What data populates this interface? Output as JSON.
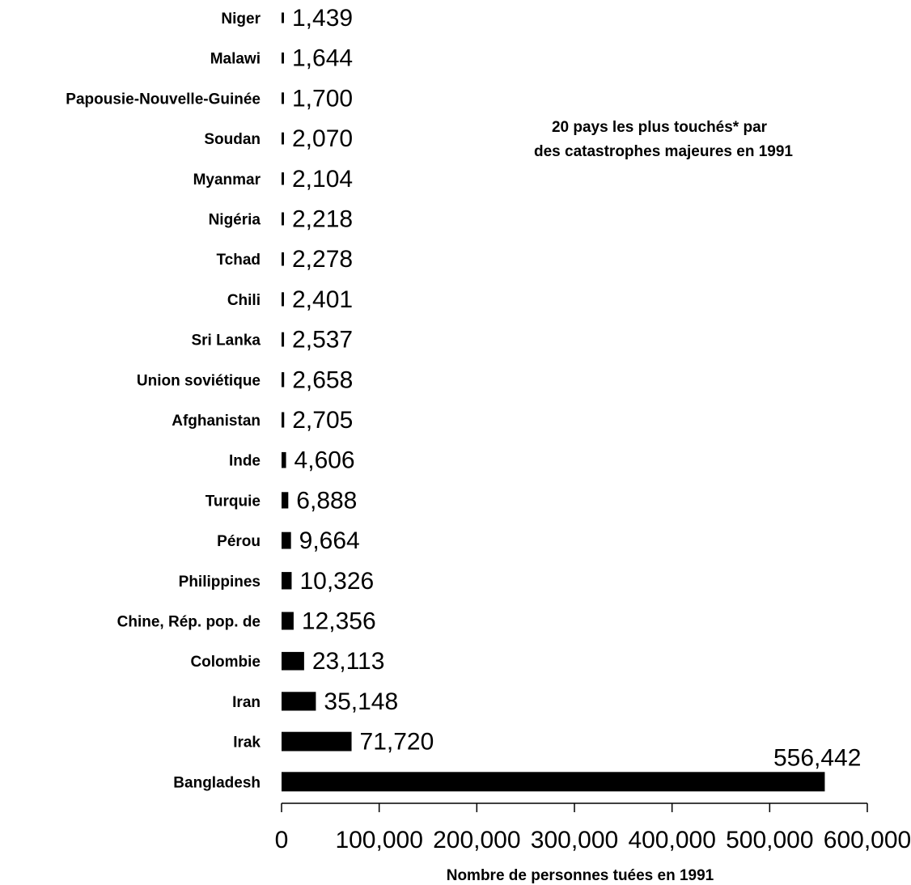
{
  "chart_data": {
    "type": "bar",
    "orientation": "horizontal",
    "title": "20 pays les plus touchés* par",
    "subtitle": "des catastrophes majeures en 1991",
    "xlabel": "Nombre de personnes tuées en 1991",
    "ylabel": "",
    "xlim": [
      0,
      600000
    ],
    "grid": false,
    "categories": [
      "Niger",
      "Malawi",
      "Papousie-Nouvelle-Guinée",
      "Soudan",
      "Myanmar",
      "Nigéria",
      "Tchad",
      "Chili",
      "Sri Lanka",
      "Union soviétique",
      "Afghanistan",
      "Inde",
      "Turquie",
      "Pérou",
      "Philippines",
      "Chine, Rép. pop. de",
      "Colombie",
      "Iran",
      "Irak",
      "Bangladesh"
    ],
    "values": [
      1439,
      1644,
      1700,
      2070,
      2104,
      2218,
      2278,
      2401,
      2537,
      2658,
      2705,
      4606,
      6888,
      9664,
      10326,
      12356,
      23113,
      35148,
      71720,
      556442
    ],
    "value_labels": [
      "1,439",
      "1,644",
      "1,700",
      "2,070",
      "2,104",
      "2,218",
      "2,278",
      "2,401",
      "2,537",
      "2,658",
      "2,705",
      "4,606",
      "6,888",
      "9,664",
      "10,326",
      "12,356",
      "23,113",
      "35,148",
      "71,720",
      "556,442"
    ],
    "tick_values": [
      0,
      100000,
      200000,
      300000,
      400000,
      500000,
      600000
    ],
    "tick_labels": [
      "0",
      "100,000",
      "200,000",
      "300,000",
      "400,000",
      "500,000",
      "600,000"
    ],
    "bar_color": "#000000"
  }
}
